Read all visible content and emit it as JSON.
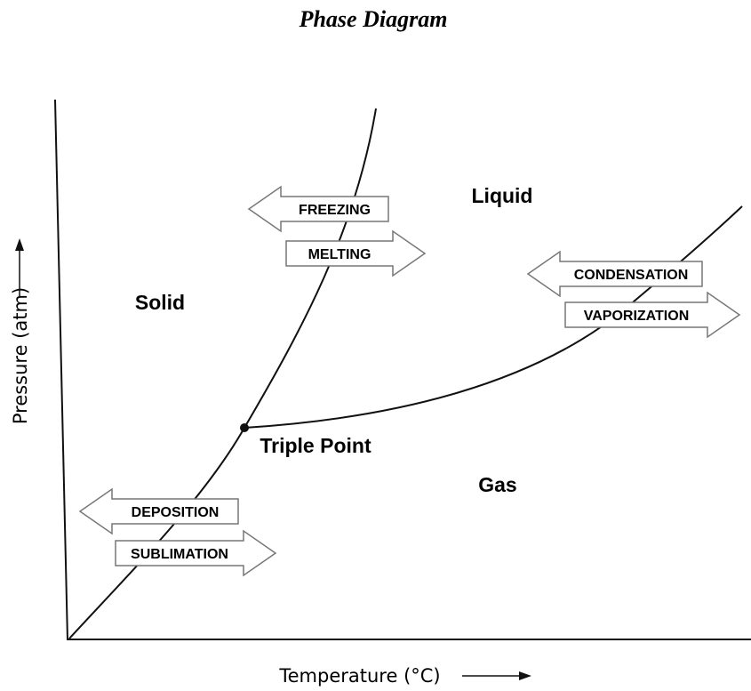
{
  "title": "Phase Diagram",
  "axes": {
    "x_label": "Temperature (°C)",
    "y_label": "Pressure (atm)"
  },
  "regions": [
    "Solid",
    "Liquid",
    "Gas"
  ],
  "triple_point": "Triple Point",
  "transitions": [
    "FREEZING",
    "MELTING",
    "CONDENSATION",
    "VAPORIZATION",
    "DEPOSITION",
    "SUBLIMATION"
  ]
}
